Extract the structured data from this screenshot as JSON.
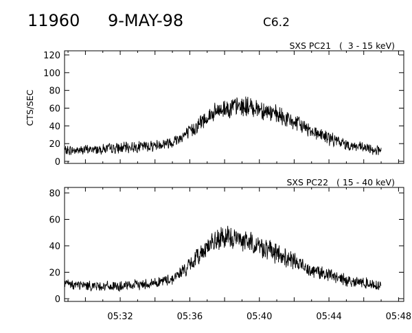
{
  "header": {
    "event_number": "11960",
    "date": "9-MAY-98",
    "flare_class": "C6.2"
  },
  "chart_data": [
    {
      "type": "line",
      "title": "SXS PC21   (  3 - 15 keV)",
      "ylabel": "CTS/SEC",
      "ylim": [
        0,
        120
      ],
      "yticks": [
        "0",
        "20",
        "40",
        "60",
        "80",
        "100",
        "120"
      ],
      "xlim_minutes_after_0530": [
        -1.2,
        18.3
      ],
      "series": [
        {
          "x": [
            "05:28:48",
            "05:30:00",
            "05:32:00",
            "05:34:00",
            "05:35:00",
            "05:36:00",
            "05:37:00",
            "05:38:00",
            "05:39:00",
            "05:40:00",
            "05:41:00",
            "05:42:00",
            "05:43:00",
            "05:44:00",
            "05:45:00",
            "05:46:00",
            "05:47:00"
          ],
          "values": [
            12,
            13,
            15,
            18,
            22,
            33,
            50,
            60,
            62,
            60,
            52,
            44,
            35,
            26,
            19,
            15,
            12
          ],
          "noise_amplitude": 7,
          "noise_relative": 0.1
        }
      ]
    },
    {
      "type": "line",
      "title": "SXS PC22   ( 15 - 40 keV)",
      "ylabel": "",
      "ylim": [
        0,
        80
      ],
      "yticks": [
        "0",
        "20",
        "40",
        "60",
        "80"
      ],
      "xlim_minutes_after_0530": [
        -1.2,
        18.3
      ],
      "xticks": [
        "05:32",
        "05:36",
        "05:40",
        "05:44",
        "05:48"
      ],
      "series": [
        {
          "x": [
            "05:28:48",
            "05:30:00",
            "05:32:00",
            "05:34:00",
            "05:35:00",
            "05:36:00",
            "05:37:00",
            "05:38:00",
            "05:39:00",
            "05:40:00",
            "05:41:00",
            "05:42:00",
            "05:43:00",
            "05:44:00",
            "05:45:00",
            "05:46:00",
            "05:47:00"
          ],
          "values": [
            11,
            10,
            9,
            12,
            15,
            25,
            40,
            46,
            45,
            40,
            34,
            28,
            22,
            18,
            14,
            12,
            10
          ],
          "noise_amplitude": 4,
          "noise_relative": 0.12
        }
      ]
    }
  ]
}
